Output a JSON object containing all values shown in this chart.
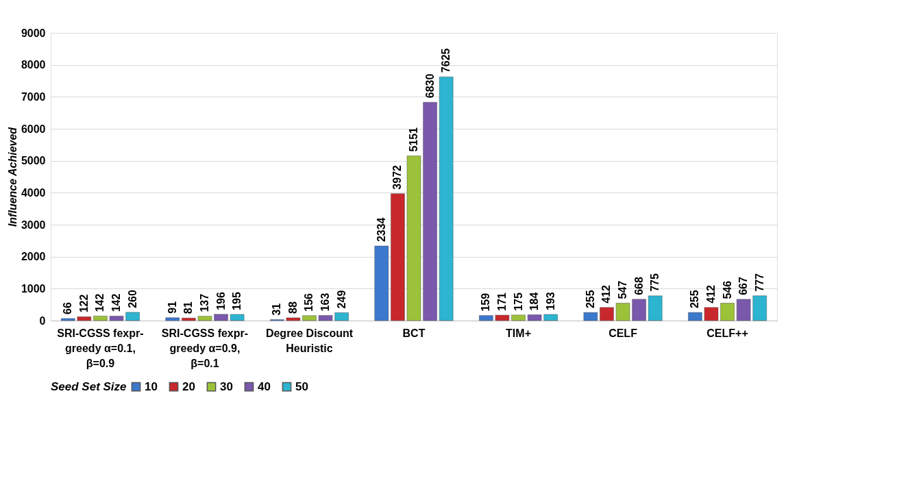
{
  "chart_data": {
    "type": "bar",
    "ylabel": "Influence Achieved",
    "legend_title": "Seed Set Size",
    "categories": [
      "SRI-CGSS fexpr-greedy α=0.1, β=0.9",
      "SRI-CGSS fexpr-greedy α=0.9, β=0.1",
      "Degree Discount Heuristic",
      "BCT",
      "TIM+",
      "CELF",
      "CELF++"
    ],
    "series": [
      {
        "name": "10",
        "color": "#3c78cc",
        "values": [
          66,
          91,
          31,
          2334,
          159,
          255,
          255
        ]
      },
      {
        "name": "20",
        "color": "#c8282c",
        "values": [
          122,
          81,
          88,
          3972,
          171,
          412,
          412
        ]
      },
      {
        "name": "30",
        "color": "#9cc23a",
        "values": [
          142,
          137,
          156,
          5151,
          175,
          547,
          546
        ]
      },
      {
        "name": "40",
        "color": "#7a58ac",
        "values": [
          142,
          196,
          163,
          6830,
          184,
          668,
          667
        ]
      },
      {
        "name": "50",
        "color": "#2cb4d0",
        "values": [
          260,
          195,
          249,
          7625,
          193,
          775,
          777
        ]
      }
    ],
    "ylim": [
      0,
      9000
    ],
    "yticks": [
      0,
      1000,
      2000,
      3000,
      4000,
      5000,
      6000,
      7000,
      8000,
      9000
    ],
    "grid": "y",
    "legend": "bottom",
    "data_labels": true
  }
}
